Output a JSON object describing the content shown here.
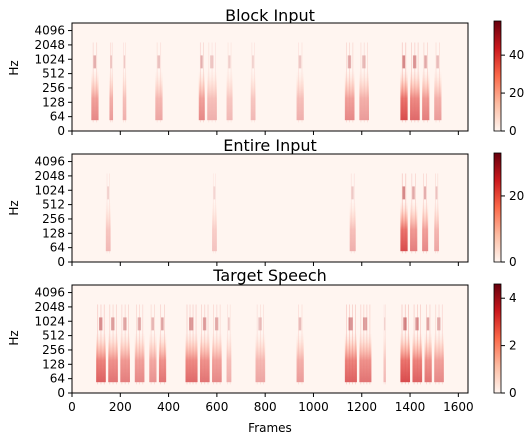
{
  "chart_data": [
    {
      "type": "heatmap",
      "title": "Block Input",
      "ylabel": "Hz",
      "xlabel": "",
      "y_ticks": [
        "0",
        "64",
        "128",
        "256",
        "512",
        "1024",
        "2048",
        "4096"
      ],
      "x_ticks": [],
      "xlim": [
        0,
        1640
      ],
      "colorbar": {
        "ticks": [
          "0",
          "20",
          "40"
        ],
        "range": [
          0,
          58
        ],
        "colormap": "Reds"
      },
      "bands": [
        {
          "f0": 80,
          "f1": 110,
          "a": 0.55
        },
        {
          "f0": 155,
          "f1": 170,
          "a": 0.45
        },
        {
          "f0": 210,
          "f1": 225,
          "a": 0.35
        },
        {
          "f0": 345,
          "f1": 375,
          "a": 0.4
        },
        {
          "f0": 525,
          "f1": 550,
          "a": 0.55
        },
        {
          "f0": 560,
          "f1": 600,
          "a": 0.35
        },
        {
          "f0": 640,
          "f1": 665,
          "a": 0.3
        },
        {
          "f0": 740,
          "f1": 760,
          "a": 0.3
        },
        {
          "f0": 930,
          "f1": 960,
          "a": 0.35
        },
        {
          "f0": 1130,
          "f1": 1170,
          "a": 0.55
        },
        {
          "f0": 1190,
          "f1": 1230,
          "a": 0.45
        },
        {
          "f0": 1360,
          "f1": 1390,
          "a": 0.85
        },
        {
          "f0": 1400,
          "f1": 1440,
          "a": 0.7
        },
        {
          "f0": 1450,
          "f1": 1480,
          "a": 0.6
        },
        {
          "f0": 1500,
          "f1": 1530,
          "a": 0.45
        }
      ]
    },
    {
      "type": "heatmap",
      "title": "Entire Input",
      "ylabel": "Hz",
      "xlabel": "",
      "y_ticks": [
        "0",
        "64",
        "128",
        "256",
        "512",
        "1024",
        "2048",
        "4096"
      ],
      "x_ticks": [],
      "xlim": [
        0,
        1640
      ],
      "colorbar": {
        "ticks": [
          "0",
          "20"
        ],
        "range": [
          0,
          33
        ],
        "colormap": "Reds"
      },
      "bands": [
        {
          "f0": 140,
          "f1": 160,
          "a": 0.3
        },
        {
          "f0": 580,
          "f1": 600,
          "a": 0.25
        },
        {
          "f0": 1150,
          "f1": 1175,
          "a": 0.35
        },
        {
          "f0": 1360,
          "f1": 1390,
          "a": 0.85
        },
        {
          "f0": 1400,
          "f1": 1430,
          "a": 0.6
        },
        {
          "f0": 1450,
          "f1": 1475,
          "a": 0.55
        },
        {
          "f0": 1500,
          "f1": 1520,
          "a": 0.4
        }
      ]
    },
    {
      "type": "heatmap",
      "title": "Target Speech",
      "ylabel": "Hz",
      "xlabel": "Frames",
      "y_ticks": [
        "0",
        "64",
        "128",
        "256",
        "512",
        "1024",
        "2048",
        "4096"
      ],
      "x_ticks": [
        "0",
        "200",
        "400",
        "600",
        "800",
        "1000",
        "1200",
        "1400",
        "1600"
      ],
      "xlim": [
        0,
        1640
      ],
      "colorbar": {
        "ticks": [
          "0",
          "2",
          "4"
        ],
        "range": [
          0,
          4.6
        ],
        "colormap": "Reds"
      },
      "bands": [
        {
          "f0": 100,
          "f1": 140,
          "a": 0.75
        },
        {
          "f0": 150,
          "f1": 190,
          "a": 0.65
        },
        {
          "f0": 200,
          "f1": 240,
          "a": 0.6
        },
        {
          "f0": 260,
          "f1": 300,
          "a": 0.55
        },
        {
          "f0": 320,
          "f1": 350,
          "a": 0.5
        },
        {
          "f0": 360,
          "f1": 390,
          "a": 0.65
        },
        {
          "f0": 470,
          "f1": 520,
          "a": 0.7
        },
        {
          "f0": 530,
          "f1": 570,
          "a": 0.65
        },
        {
          "f0": 580,
          "f1": 620,
          "a": 0.55
        },
        {
          "f0": 640,
          "f1": 660,
          "a": 0.35
        },
        {
          "f0": 760,
          "f1": 800,
          "a": 0.4
        },
        {
          "f0": 930,
          "f1": 960,
          "a": 0.45
        },
        {
          "f0": 1130,
          "f1": 1180,
          "a": 0.75
        },
        {
          "f0": 1190,
          "f1": 1240,
          "a": 0.65
        },
        {
          "f0": 1290,
          "f1": 1300,
          "a": 0.3
        },
        {
          "f0": 1360,
          "f1": 1400,
          "a": 0.85
        },
        {
          "f0": 1410,
          "f1": 1450,
          "a": 0.75
        },
        {
          "f0": 1460,
          "f1": 1490,
          "a": 0.65
        },
        {
          "f0": 1500,
          "f1": 1540,
          "a": 0.55
        }
      ]
    }
  ]
}
